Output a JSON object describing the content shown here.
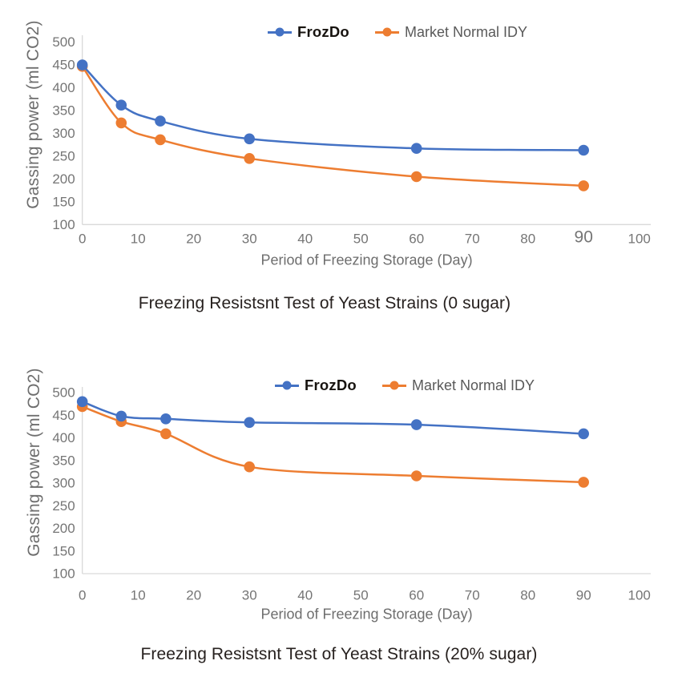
{
  "style": {
    "axis_line_color": "#d9d9d9",
    "tick_text_color": "#757575",
    "axis_title_color": "#6e6e6e",
    "chart_title_color": "#27211f",
    "frozdo_color": "#4472C4",
    "market_color": "#ED7D31"
  },
  "chart_data": [
    {
      "type": "line",
      "title": "Freezing Resistsnt Test of Yeast Strains (0 sugar)",
      "xlabel": "Period of Freezing Storage (Day)",
      "ylabel": "Gassing power (ml CO2)",
      "x": [
        0,
        7,
        14,
        30,
        60,
        90
      ],
      "series": [
        {
          "name": "FrozDo",
          "color": "#4472C4",
          "values": [
            450,
            362,
            327,
            288,
            267,
            263
          ]
        },
        {
          "name": "Market Normal IDY",
          "color": "#ED7D31",
          "values": [
            447,
            323,
            286,
            245,
            205,
            185
          ]
        }
      ],
      "x_ticks": [
        0,
        10,
        20,
        30,
        40,
        50,
        60,
        70,
        80,
        90,
        100
      ],
      "emphasized_x_tick": 90,
      "y_min": 100,
      "y_max": 500,
      "y_step": 50,
      "xlim": [
        0,
        100
      ],
      "grid": false,
      "legend_position": "top-center"
    },
    {
      "type": "line",
      "title": "Freezing Resistsnt Test of Yeast Strains (20% sugar)",
      "xlabel": "Period of Freezing Storage (Day)",
      "ylabel": "Gassing power (ml CO2)",
      "x": [
        0,
        7,
        15,
        30,
        60,
        90
      ],
      "series": [
        {
          "name": "FrozDo",
          "color": "#4472C4",
          "values": [
            480,
            448,
            442,
            434,
            429,
            409
          ]
        },
        {
          "name": "Market Normal IDY",
          "color": "#ED7D31",
          "values": [
            469,
            436,
            409,
            336,
            316,
            302
          ]
        }
      ],
      "x_ticks": [
        0,
        10,
        20,
        30,
        40,
        50,
        60,
        70,
        80,
        90,
        100
      ],
      "emphasized_x_tick": null,
      "y_min": 100,
      "y_max": 500,
      "y_step": 50,
      "xlim": [
        0,
        100
      ],
      "grid": false,
      "legend_position": "top-center"
    }
  ]
}
